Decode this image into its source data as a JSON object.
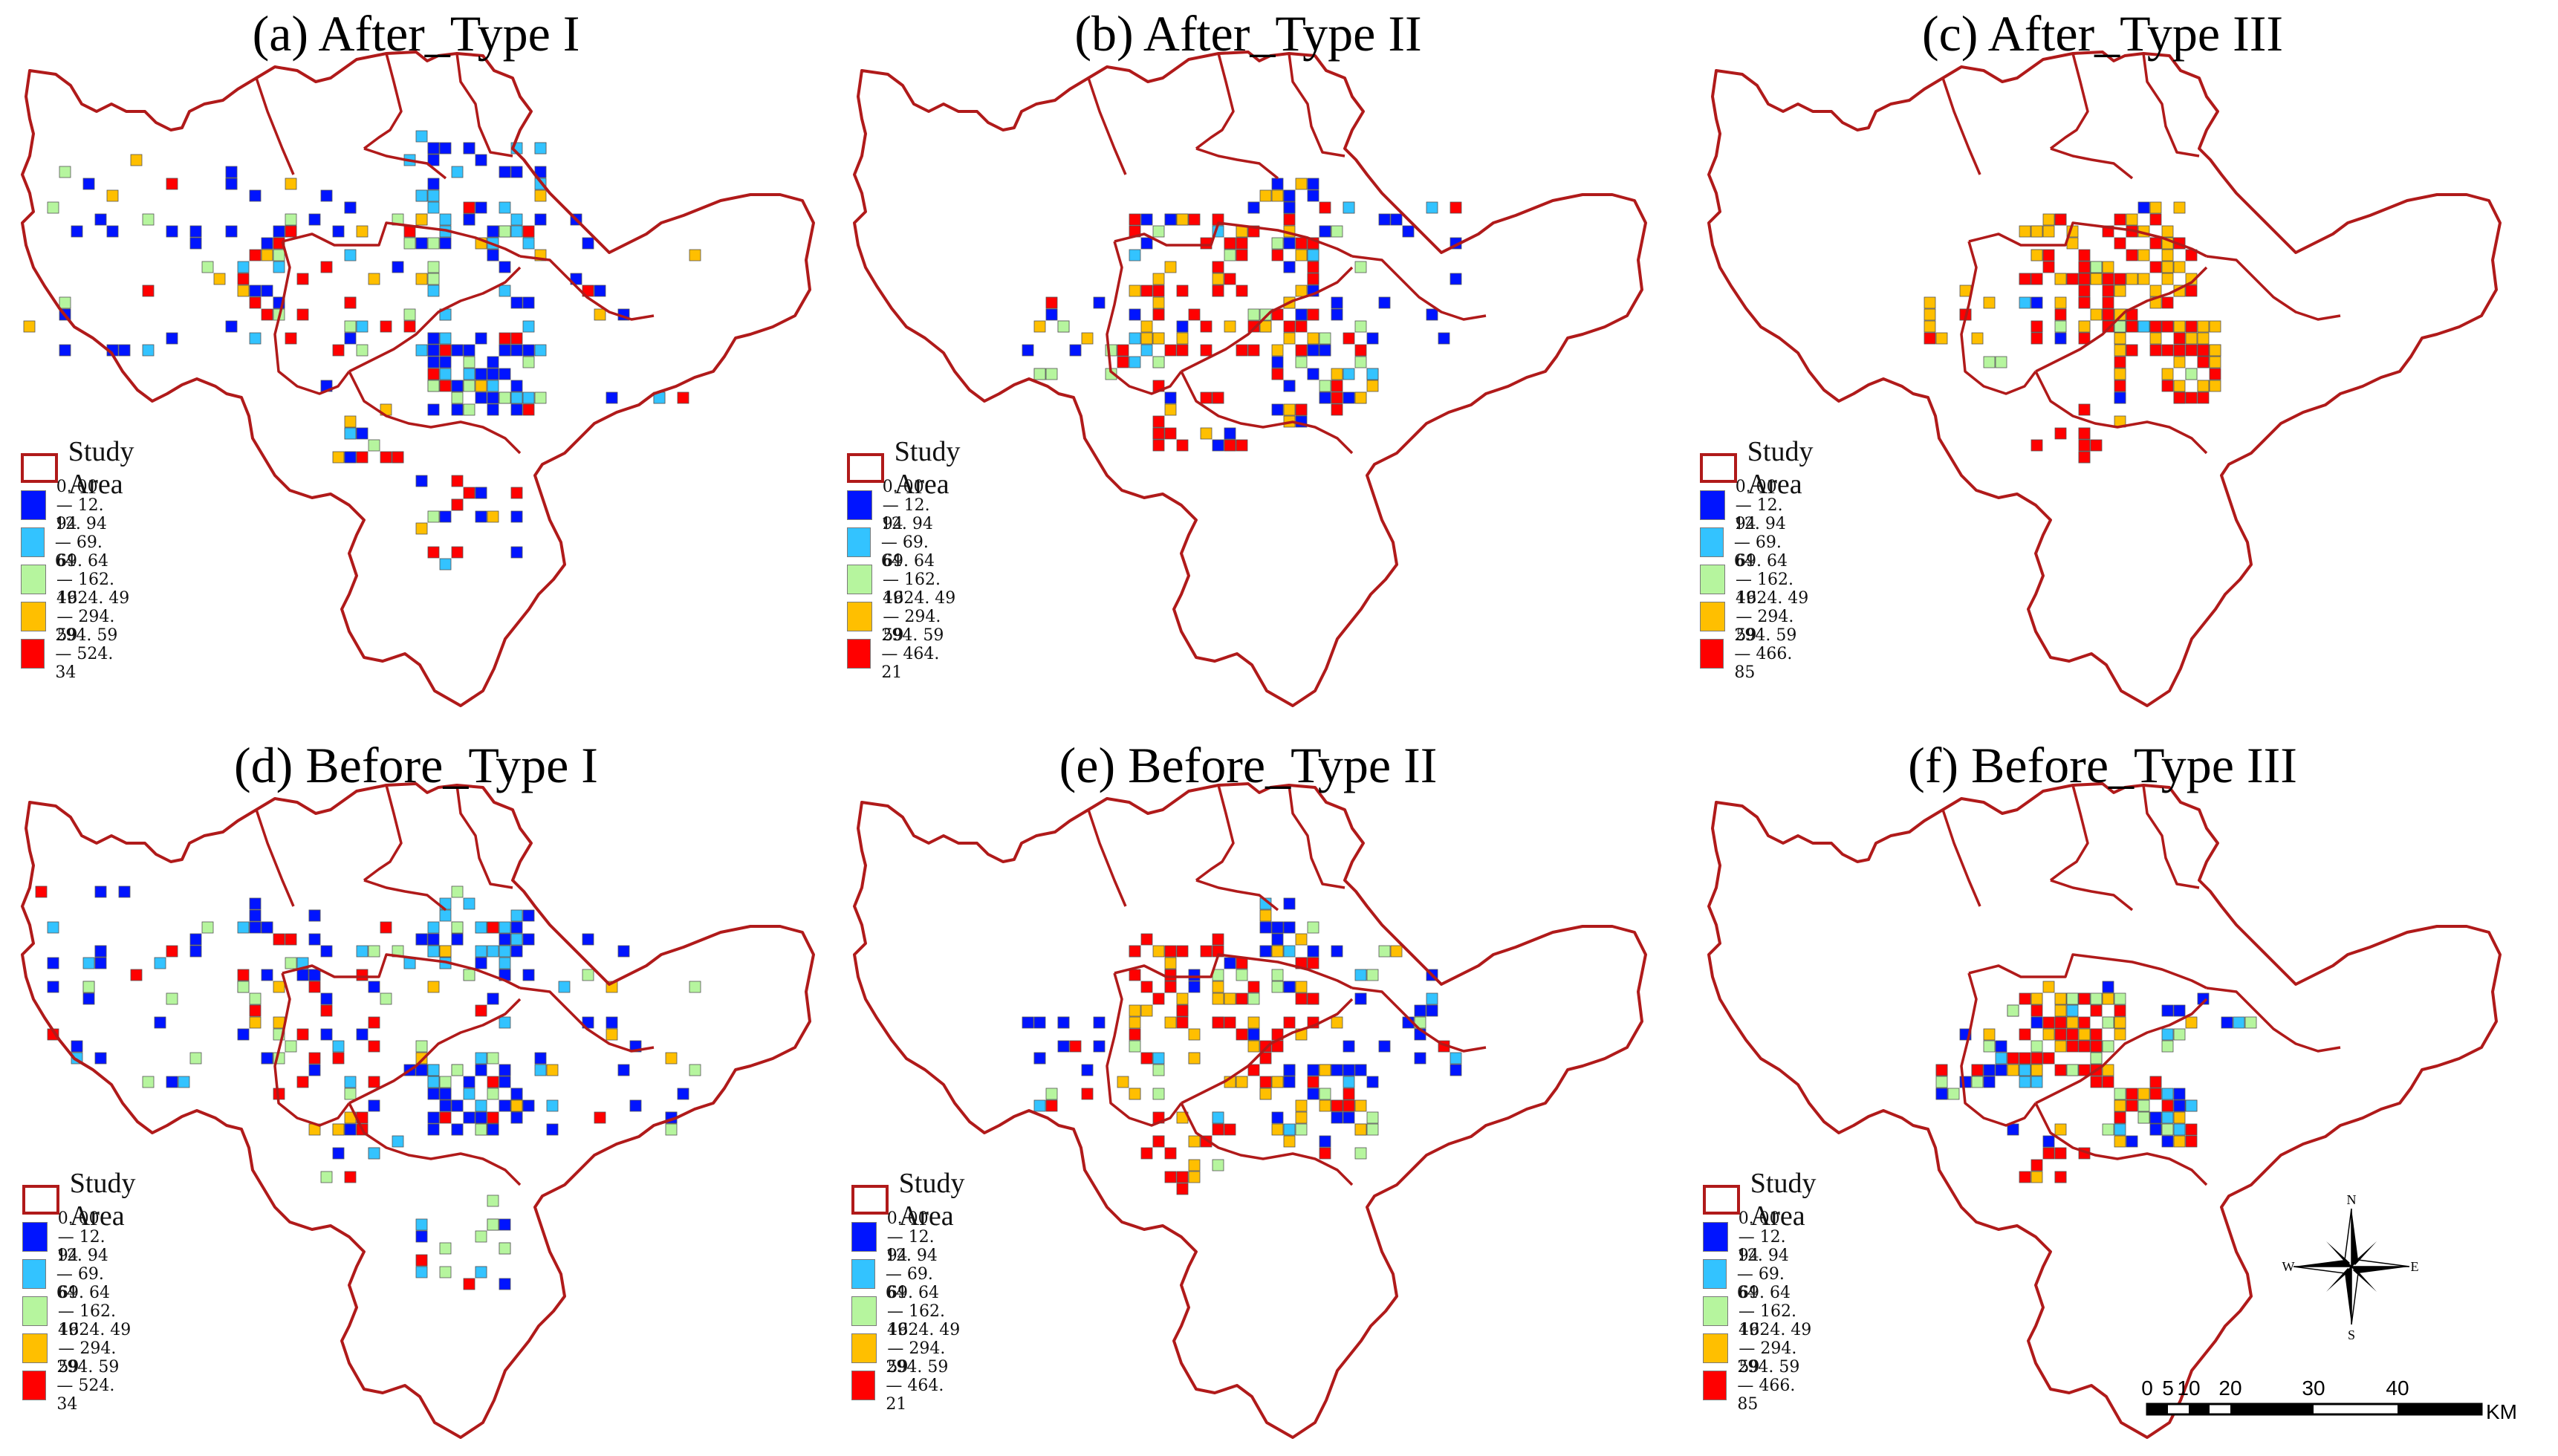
{
  "legend_colors": {
    "study_area": "#b01a1a",
    "class_1": "#0014ff",
    "class_2": "#33c3ff",
    "class_3": "#b6f59e",
    "class_4": "#ffbf00",
    "class_5": "#ff0000"
  },
  "panels": [
    {
      "id": "a",
      "title": "(a)   After_Type I",
      "legend_title": "Study Area",
      "classes": [
        "0. 00 — 12. 94",
        "12. 94 — 69. 64",
        "69. 64 — 162. 49",
        "1624. 49 — 294. 59",
        "294. 59 — 524. 34"
      ]
    },
    {
      "id": "b",
      "title": "(b)   After_Type II",
      "legend_title": "Study Area",
      "classes": [
        "0. 00 — 12. 94",
        "12. 94 — 69. 64",
        "69. 64 — 162. 49",
        "1624. 49 — 294. 59",
        "294. 59 — 464. 21"
      ]
    },
    {
      "id": "c",
      "title": "(c)   After_Type III",
      "legend_title": "Study Area",
      "classes": [
        "0. 00 — 12. 94",
        "12. 94 — 69. 64",
        "69. 64 — 162. 49",
        "1624. 49 — 294. 59",
        "294. 59 — 466. 85"
      ]
    },
    {
      "id": "d",
      "title": "(d)   Before_Type I",
      "legend_title": "Study Area",
      "classes": [
        "0. 00 — 12. 94",
        "12. 94 — 69. 64",
        "69. 64 — 162. 49",
        "1624. 49 — 294. 59",
        "294. 59 — 524. 34"
      ]
    },
    {
      "id": "e",
      "title": "(e)   Before_Type II",
      "legend_title": "Study Area",
      "classes": [
        "0. 00 — 12. 94",
        "12. 94 — 69. 64",
        "69. 64 — 162. 49",
        "1624. 49 — 294. 59",
        "294. 59 — 464. 21"
      ]
    },
    {
      "id": "f",
      "title": "(f)   Before_Type III",
      "legend_title": "Study Area",
      "classes": [
        "0. 00 — 12. 94",
        "12. 94 — 69. 64",
        "69. 64 — 162. 49",
        "1624. 49 — 294. 59",
        "294. 59 — 466. 85"
      ]
    }
  ],
  "compass": {
    "n": "N",
    "s": "S",
    "e": "E",
    "w": "W"
  },
  "scale": {
    "ticks": [
      "0",
      "5",
      "10",
      "20",
      "30",
      "40"
    ],
    "unit": "KM"
  }
}
